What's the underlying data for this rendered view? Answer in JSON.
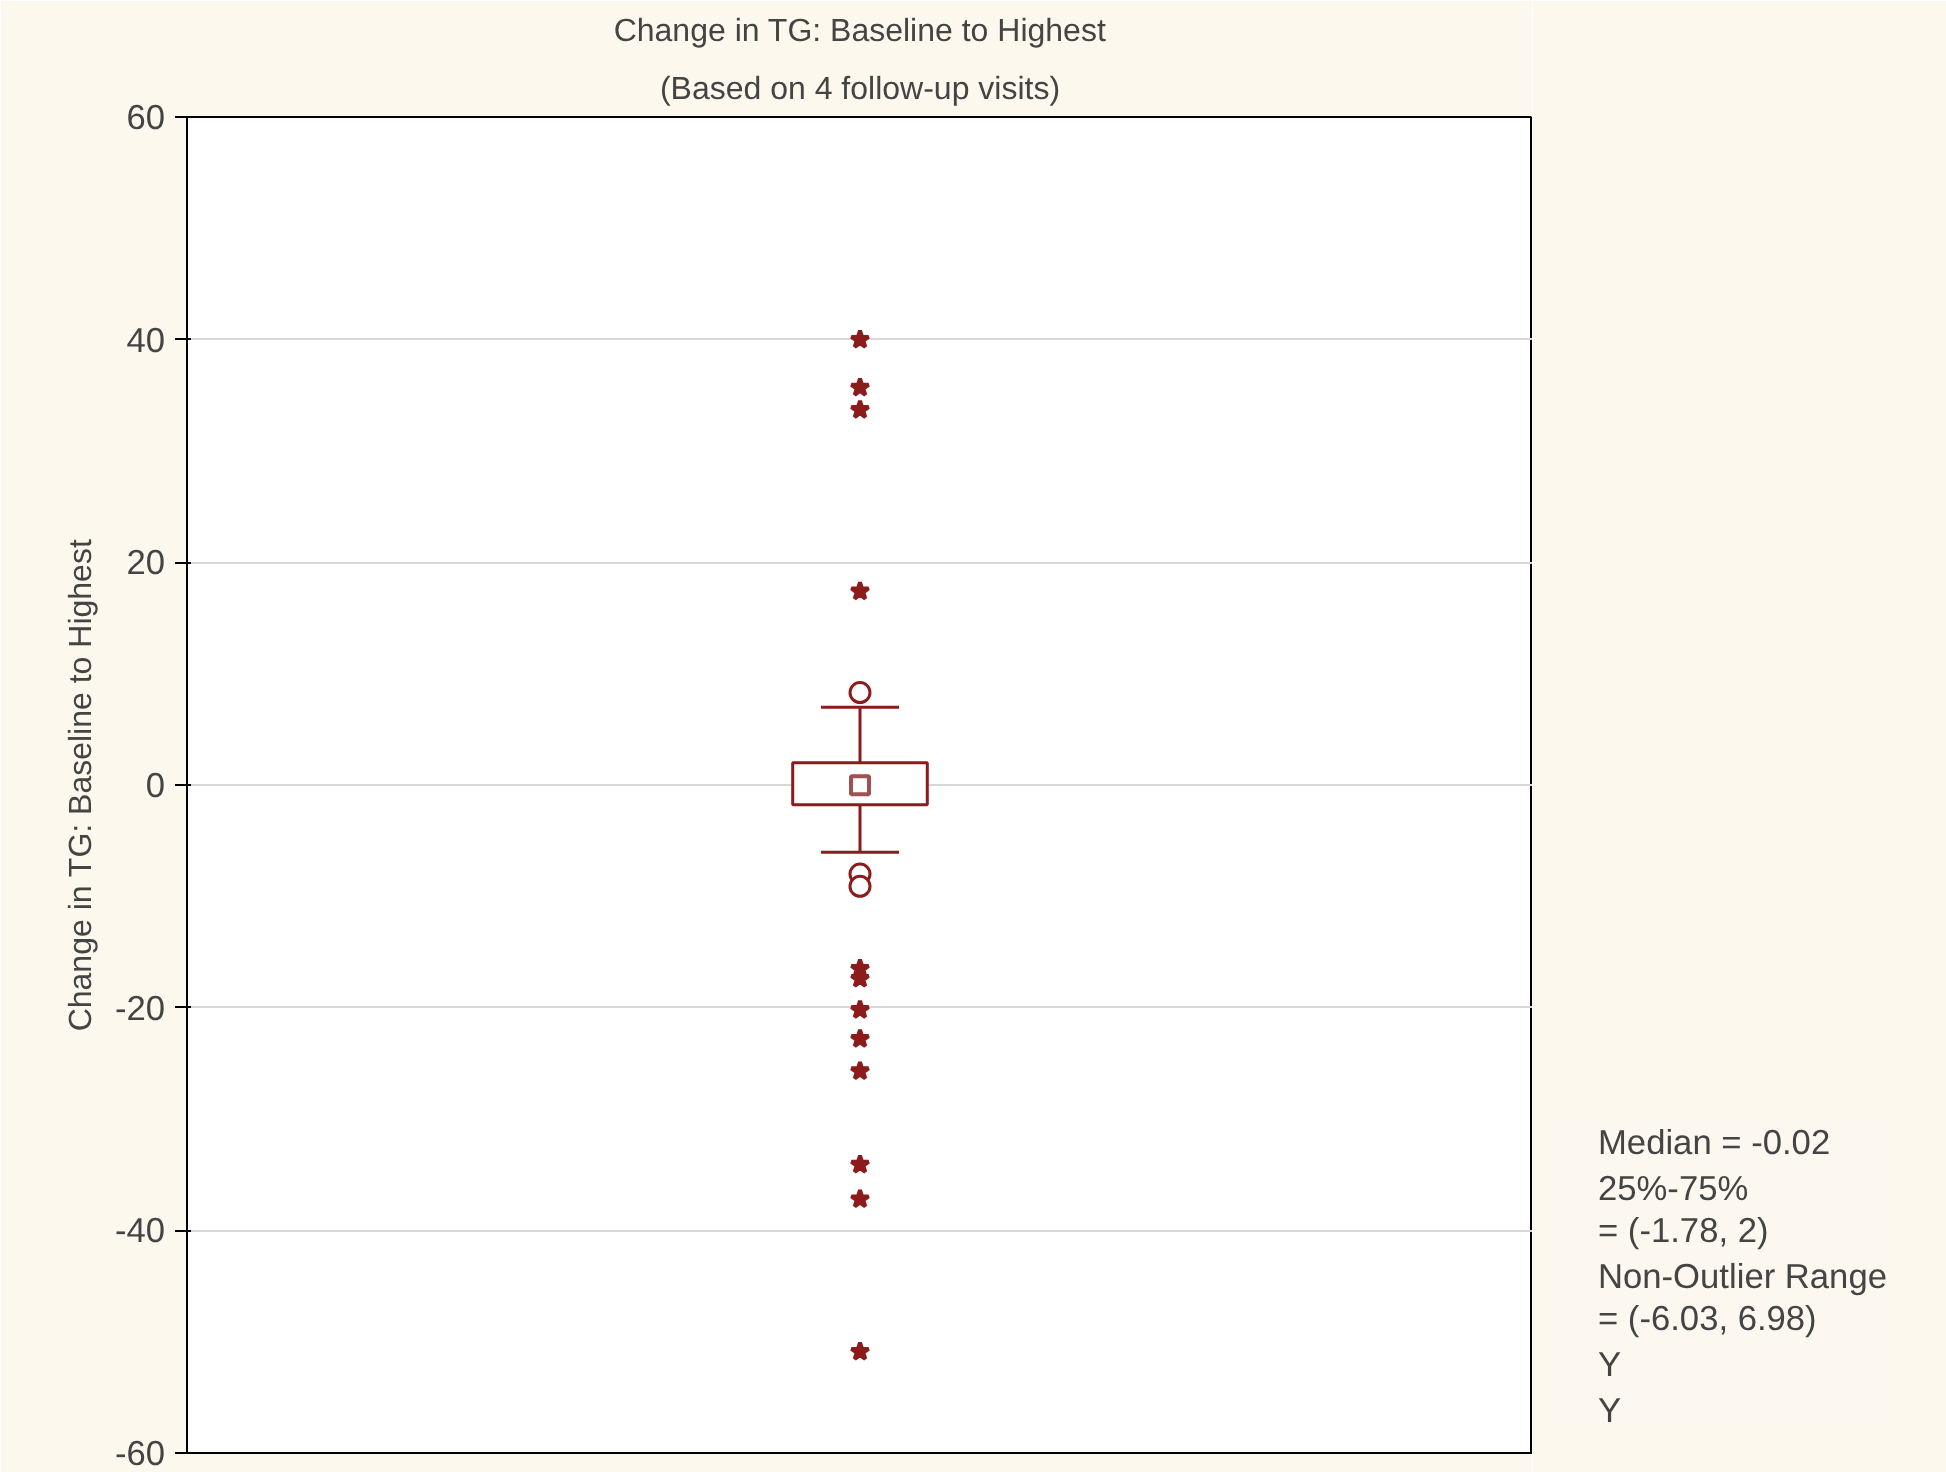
{
  "chart_data": {
    "type": "box",
    "title": "Change in TG: Baseline to Highest",
    "subtitle": "(Based on 4 follow-up visits)",
    "ylabel": "Change in TG: Baseline to Highest",
    "categories": [
      null
    ],
    "ylim": [
      -60,
      60
    ],
    "yticks": [
      -60,
      -40,
      -20,
      0,
      20,
      40,
      60
    ],
    "grid": "y",
    "legend": "bottom right",
    "annotations": [
      "Median = -0.02",
      "25%-75%\n= (-1.78, 2)",
      "Non-Outlier Range\n= (-6.03, 6.98)"
    ],
    "series": [
      {
        "name": "Y",
        "color": "#8c1c1c",
        "marker": "circle",
        "boxes": [
          {
            "low": -6.03,
            "q1": -1.78,
            "median": -0.02,
            "q3": 2,
            "high": 6.98,
            "outliers": [
              8.3,
              -8.0,
              -9.1
            ]
          }
        ]
      },
      {
        "type": "scatter",
        "name": "Y",
        "color": "#8c1c1c",
        "marker": "star",
        "x": [
          null,
          null,
          null,
          null,
          null,
          null,
          null,
          null,
          null,
          null,
          null,
          null
        ],
        "values": [
          40,
          35.7,
          33.7,
          17.4,
          -16.5,
          -17.4,
          -20.2,
          -22.8,
          -25.7,
          -34.1,
          -37.2,
          -50.9
        ]
      }
    ]
  }
}
